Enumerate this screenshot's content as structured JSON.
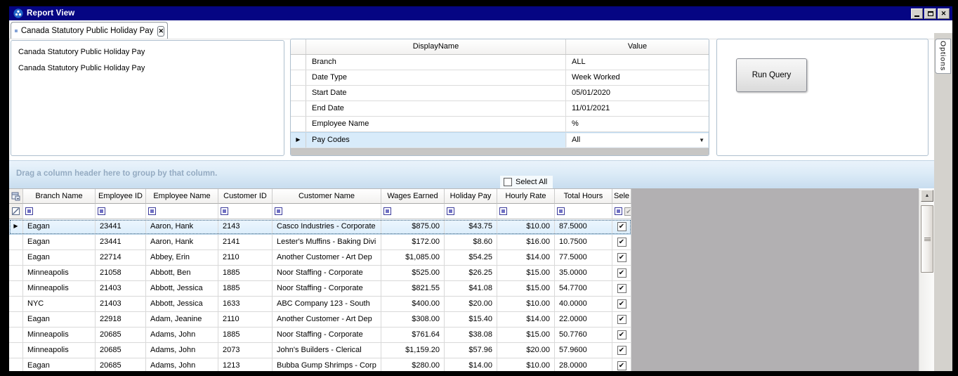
{
  "window": {
    "title": "Report View"
  },
  "tab": {
    "label": "Canada Statutory Public Holiday Pay"
  },
  "report_info": {
    "line1": "Canada Statutory Public Holiday Pay",
    "line2": "Canada Statutory Public Holiday Pay"
  },
  "parameters": {
    "header": {
      "display_name": "DisplayName",
      "value": "Value"
    },
    "rows": [
      {
        "name": "Branch",
        "value": "ALL",
        "selected": false,
        "dropdown": false
      },
      {
        "name": "Date Type",
        "value": "Week Worked",
        "selected": false,
        "dropdown": false
      },
      {
        "name": "Start Date",
        "value": "05/01/2020",
        "selected": false,
        "dropdown": false
      },
      {
        "name": "End Date",
        "value": "11/01/2021",
        "selected": false,
        "dropdown": false
      },
      {
        "name": "Employee Name",
        "value": "%",
        "selected": false,
        "dropdown": false
      },
      {
        "name": "Pay Codes",
        "value": "All",
        "selected": true,
        "dropdown": true
      }
    ]
  },
  "actions": {
    "run_query": "Run Query"
  },
  "options_tab": {
    "label": "Options"
  },
  "grid": {
    "group_hint": "Drag a column header here to group by that column.",
    "select_all_label": "Select All",
    "columns": [
      "Branch Name",
      "Employee ID",
      "Employee Name",
      "Customer ID",
      "Customer Name",
      "Wages Earned",
      "Holiday Pay",
      "Hourly Rate",
      "Total Hours",
      "Sele"
    ],
    "rows": [
      {
        "branch": "Eagan",
        "employee_id": "23441",
        "employee_name": "Aaron, Hank",
        "customer_id": "2143",
        "customer_name": "Casco Industries - Corporate",
        "wages": "$875.00",
        "holiday": "$43.75",
        "rate": "$10.00",
        "hours": "87.5000",
        "checked": true,
        "selected": true
      },
      {
        "branch": "Eagan",
        "employee_id": "23441",
        "employee_name": "Aaron, Hank",
        "customer_id": "2141",
        "customer_name": "Lester's Muffins - Baking Divi",
        "wages": "$172.00",
        "holiday": "$8.60",
        "rate": "$16.00",
        "hours": "10.7500",
        "checked": true,
        "selected": false
      },
      {
        "branch": "Eagan",
        "employee_id": "22714",
        "employee_name": "Abbey, Erin",
        "customer_id": "2110",
        "customer_name": "Another Customer - Art Dep",
        "wages": "$1,085.00",
        "holiday": "$54.25",
        "rate": "$14.00",
        "hours": "77.5000",
        "checked": true,
        "selected": false
      },
      {
        "branch": "Minneapolis",
        "employee_id": "21058",
        "employee_name": "Abbott, Ben",
        "customer_id": "1885",
        "customer_name": "Noor Staffing - Corporate",
        "wages": "$525.00",
        "holiday": "$26.25",
        "rate": "$15.00",
        "hours": "35.0000",
        "checked": true,
        "selected": false
      },
      {
        "branch": "Minneapolis",
        "employee_id": "21403",
        "employee_name": "Abbott, Jessica",
        "customer_id": "1885",
        "customer_name": "Noor Staffing - Corporate",
        "wages": "$821.55",
        "holiday": "$41.08",
        "rate": "$15.00",
        "hours": "54.7700",
        "checked": true,
        "selected": false
      },
      {
        "branch": "NYC",
        "employee_id": "21403",
        "employee_name": "Abbott, Jessica",
        "customer_id": "1633",
        "customer_name": "ABC Company 123 - South",
        "wages": "$400.00",
        "holiday": "$20.00",
        "rate": "$10.00",
        "hours": "40.0000",
        "checked": true,
        "selected": false
      },
      {
        "branch": "Eagan",
        "employee_id": "22918",
        "employee_name": "Adam, Jeanine",
        "customer_id": "2110",
        "customer_name": "Another Customer - Art Dep",
        "wages": "$308.00",
        "holiday": "$15.40",
        "rate": "$14.00",
        "hours": "22.0000",
        "checked": true,
        "selected": false
      },
      {
        "branch": "Minneapolis",
        "employee_id": "20685",
        "employee_name": "Adams, John",
        "customer_id": "1885",
        "customer_name": "Noor Staffing - Corporate",
        "wages": "$761.64",
        "holiday": "$38.08",
        "rate": "$15.00",
        "hours": "50.7760",
        "checked": true,
        "selected": false
      },
      {
        "branch": "Minneapolis",
        "employee_id": "20685",
        "employee_name": "Adams, John",
        "customer_id": "2073",
        "customer_name": "John's Builders - Clerical",
        "wages": "$1,159.20",
        "holiday": "$57.96",
        "rate": "$20.00",
        "hours": "57.9600",
        "checked": true,
        "selected": false
      },
      {
        "branch": "Eagan",
        "employee_id": "20685",
        "employee_name": "Adams, John",
        "customer_id": "1213",
        "customer_name": "Bubba Gump Shrimps - Corp",
        "wages": "$280.00",
        "holiday": "$14.00",
        "rate": "$10.00",
        "hours": "28.0000",
        "checked": true,
        "selected": false
      }
    ]
  },
  "icons": {
    "selected_arrow": "▶",
    "dropdown": "▼",
    "scroll_up": "▲",
    "check": "✔",
    "close": "✕",
    "colors": {
      "titlebar": "#050583",
      "accent_blue": "#3a6cc0",
      "filter_square": "#7070c4",
      "gray_area": "#b2b0b2"
    }
  }
}
